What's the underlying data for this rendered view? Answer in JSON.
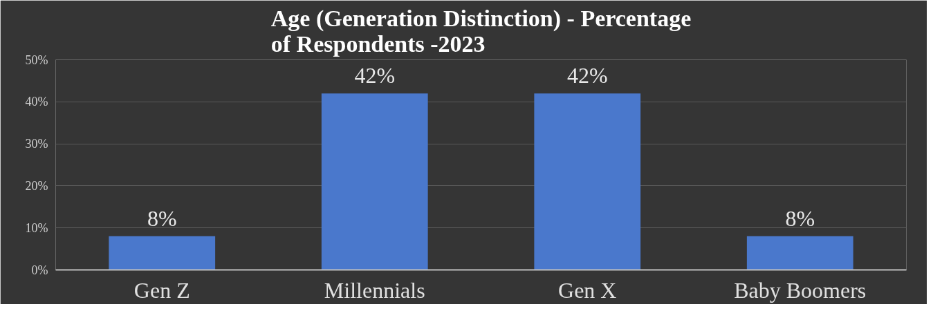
{
  "chart_data": {
    "type": "bar",
    "title": "Age (Generation Distinction) - Percentage of Respondents -2023",
    "categories": [
      "Gen Z",
      "Millennials",
      "Gen X",
      "Baby Boomers"
    ],
    "values": [
      8,
      42,
      42,
      8
    ],
    "value_labels": [
      "8%",
      "42%",
      "42%",
      "8%"
    ],
    "color": "#4a78cc",
    "ylim": [
      0,
      50
    ],
    "yticks": [
      {
        "value": 0,
        "label": "0%"
      },
      {
        "value": 10,
        "label": "10%"
      },
      {
        "value": 20,
        "label": "20%"
      },
      {
        "value": 30,
        "label": "30%"
      },
      {
        "value": 40,
        "label": "40%"
      },
      {
        "value": 50,
        "label": "50%"
      }
    ],
    "grid": "y"
  }
}
